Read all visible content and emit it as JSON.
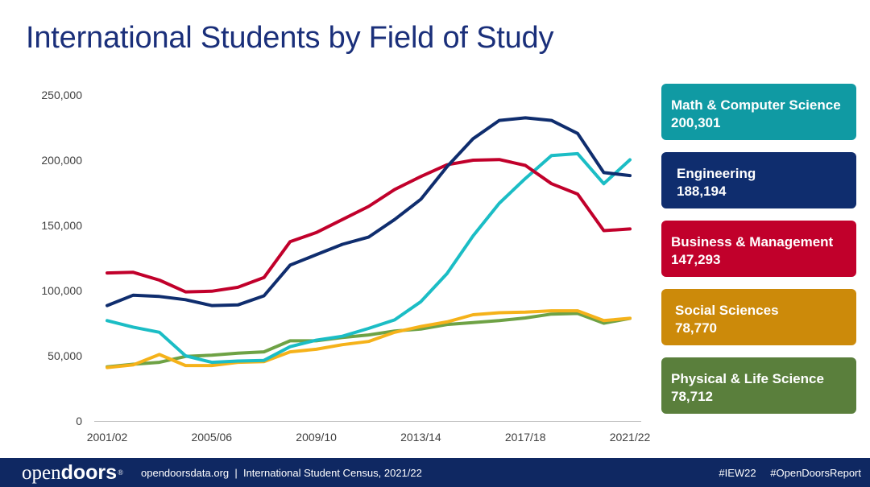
{
  "title": "International Students by Field of Study",
  "chart_data": {
    "type": "line",
    "title": "International Students by Field of Study",
    "xlabel": "",
    "ylabel": "",
    "x": [
      "2001/02",
      "2002/03",
      "2003/04",
      "2004/05",
      "2005/06",
      "2006/07",
      "2007/08",
      "2008/09",
      "2009/10",
      "2010/11",
      "2011/12",
      "2012/13",
      "2013/14",
      "2014/15",
      "2015/16",
      "2016/17",
      "2017/18",
      "2018/19",
      "2019/20",
      "2020/21",
      "2021/22"
    ],
    "x_tick_labels": [
      "2001/02",
      "2005/06",
      "2009/10",
      "2013/14",
      "2017/18",
      "2021/22"
    ],
    "y_tick_labels": [
      "0",
      "50,000",
      "100,000",
      "150,000",
      "200,000",
      "250,000"
    ],
    "ylim": [
      0,
      250000
    ],
    "grid": false,
    "legend_placement": "right",
    "series": [
      {
        "name": "Math & Computer Science",
        "display_value": "200,301",
        "color": "#1bbdc5",
        "legend_color": "#109aa3",
        "values": [
          77000,
          72000,
          68000,
          50000,
          45000,
          46000,
          46500,
          57000,
          62000,
          65000,
          71000,
          77500,
          91500,
          113000,
          142000,
          167000,
          186000,
          203500,
          205000,
          182000,
          200301
        ]
      },
      {
        "name": "Engineering",
        "display_value": "188,194",
        "color": "#0f2d6e",
        "legend_color": "#0f2d6e",
        "values": [
          88500,
          96500,
          95500,
          93000,
          88500,
          89000,
          96000,
          119500,
          127500,
          135500,
          141000,
          154500,
          170000,
          195000,
          216500,
          230500,
          232500,
          230500,
          220500,
          190500,
          188194
        ]
      },
      {
        "name": "Business & Management",
        "display_value": "147,293",
        "color": "#c1002b",
        "legend_color": "#c1002b",
        "values": [
          113500,
          114000,
          108000,
          99000,
          99500,
          102500,
          110000,
          137500,
          144500,
          154500,
          164500,
          177500,
          187500,
          196500,
          200000,
          200500,
          196000,
          182000,
          174000,
          146000,
          147293
        ]
      },
      {
        "name": "Social Sciences",
        "display_value": "78,770",
        "color": "#f5b21a",
        "legend_color": "#cc8a0a",
        "values": [
          41000,
          43000,
          51000,
          42500,
          42500,
          45000,
          45500,
          53000,
          55000,
          58500,
          61000,
          68000,
          72500,
          76000,
          81500,
          83000,
          83500,
          84500,
          84500,
          77000,
          78770
        ]
      },
      {
        "name": "Physical & Life Science",
        "display_value": "78,712",
        "color": "#6ea245",
        "legend_color": "#5a7f3c",
        "values": [
          41500,
          43500,
          45000,
          49500,
          50500,
          52000,
          53000,
          61500,
          61500,
          64000,
          66000,
          69000,
          70500,
          74000,
          75500,
          77000,
          79000,
          82000,
          82500,
          75000,
          78712
        ]
      }
    ]
  },
  "footer": {
    "logo_open": "open",
    "logo_doors": "doors",
    "logo_mark": "®",
    "source": "opendoorsdata.org  |  International Student Census, 2021/22",
    "hashtag1": "#IEW22",
    "hashtag2": "#OpenDoorsReport"
  }
}
